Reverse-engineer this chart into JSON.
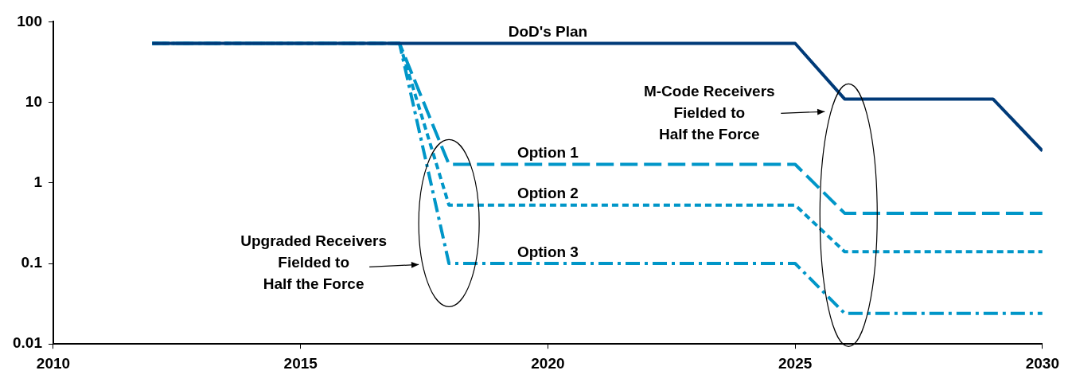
{
  "chart_data": {
    "type": "line",
    "log": "y",
    "xlim": [
      2010,
      2030
    ],
    "xticks": [
      2010,
      2015,
      2020,
      2025,
      2030
    ],
    "ylim": [
      0.01,
      100
    ],
    "yticks": [
      0.01,
      0.1,
      1,
      10,
      100
    ],
    "grid": false,
    "legend": false,
    "series": [
      {
        "name": "DoD's Plan",
        "color": "#003a78",
        "line_style": "solid",
        "x": [
          2012,
          2025,
          2026,
          2029,
          2030
        ],
        "values": [
          54,
          54,
          11,
          11,
          2.5
        ]
      },
      {
        "name": "Option 1",
        "color": "#0096c8",
        "line_style": "dashed",
        "x": [
          2012,
          2017,
          2018,
          2025,
          2026,
          2030
        ],
        "values": [
          54,
          54,
          1.7,
          1.7,
          0.42,
          0.42
        ]
      },
      {
        "name": "Option 2",
        "color": "#0096c8",
        "line_style": "dotted",
        "x": [
          2012,
          2017,
          2018,
          2025,
          2026,
          2030
        ],
        "values": [
          54,
          54,
          0.53,
          0.53,
          0.14,
          0.14
        ]
      },
      {
        "name": "Option 3",
        "color": "#0096c8",
        "line_style": "dashdot",
        "x": [
          2012,
          2017,
          2018,
          2025,
          2026,
          2030
        ],
        "values": [
          54,
          54,
          0.1,
          0.1,
          0.024,
          0.024
        ]
      }
    ],
    "annotations": [
      "Upgraded Receivers\nFielded to\nHalf the Force",
      "M-Code Receivers\nFielded to\nHalf the Force"
    ]
  }
}
